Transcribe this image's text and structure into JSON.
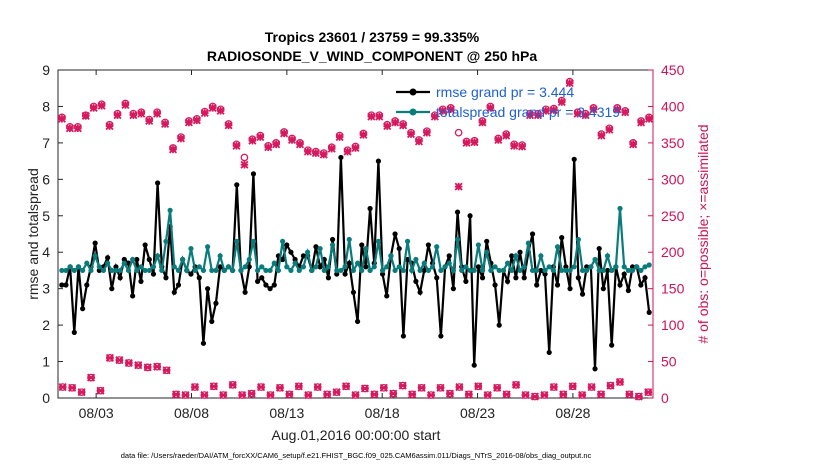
{
  "chart_data": {
    "type": "line",
    "title": "Tropics 23601 / 23759 = 99.335%",
    "subtitle": "RADIOSONDE_V_WIND_COMPONENT @ 250 hPa",
    "xlabel": "Aug.01,2016 00:00:00 start",
    "ylabel": "rmse and totalspread",
    "y2label": "# of obs: o=possible; ×=assimilated",
    "footer": "data file: /Users/raeder/DAI/ATM_forcXX/CAM6_setup/f.e21.FHIST_BGC.f09_025.CAM6assim.011/Diags_NTrS_2016-08/obs_diag_output.nc",
    "xlim": [
      1,
      32.2
    ],
    "ylim": [
      0,
      9
    ],
    "y2lim": [
      0,
      450
    ],
    "x_ticks": [
      3,
      8,
      13,
      18,
      23,
      28
    ],
    "x_tick_labels": [
      "08/03",
      "08/08",
      "08/13",
      "08/18",
      "08/23",
      "08/28"
    ],
    "y_ticks": [
      0,
      1,
      2,
      3,
      4,
      5,
      6,
      7,
      8,
      9
    ],
    "y2_ticks": [
      0,
      50,
      100,
      150,
      200,
      250,
      300,
      350,
      400,
      450
    ],
    "legend": [
      "rmse grand pr = 3.444",
      "totalspread grand pr = 3.4319"
    ],
    "legend_position": "top-right",
    "series": [
      {
        "name": "rmse grand pr = 3.444",
        "color": "#000000",
        "axis": "left",
        "values": [
          3.1,
          3.1,
          3.6,
          1.8,
          3.6,
          2.45,
          3.1,
          3.6,
          4.25,
          3.5,
          3.6,
          3.85,
          3.0,
          3.6,
          3.3,
          3.8,
          3.7,
          2.8,
          3.8,
          3.2,
          4.2,
          3.8,
          3.4,
          5.9,
          3.6,
          3.3,
          4.7,
          2.9,
          3.1,
          3.8,
          3.5,
          3.4,
          3.6,
          3.3,
          1.5,
          3.0,
          2.1,
          2.6,
          3.6,
          3.5,
          3.6,
          3.5,
          5.85,
          3.5,
          2.9,
          3.6,
          6.15,
          3.2,
          3.3,
          3.1,
          3.0,
          3.1,
          3.9,
          3.8,
          4.2,
          4.0,
          3.8,
          3.6,
          3.9,
          3.9,
          3.5,
          4.15,
          3.6,
          3.8,
          3.3,
          4.35,
          3.4,
          6.6,
          3.4,
          3.7,
          2.9,
          2.1,
          4.2,
          3.6,
          5.2,
          3.7,
          6.5,
          3.4,
          2.8,
          3.9,
          4.5,
          4.1,
          1.7,
          3.8,
          3.7,
          3.2,
          2.9,
          3.5,
          4.2,
          3.7,
          3.3,
          1.7,
          3.6,
          3.9,
          3.0,
          5.1,
          3.6,
          3.2,
          5.0,
          0.9,
          3.6,
          3.3,
          4.3,
          3.7,
          3.1,
          2.0,
          3.5,
          3.2,
          3.9,
          3.3,
          4.0,
          3.3,
          4.0,
          4.5,
          3.1,
          3.5,
          3.4,
          1.25,
          3.6,
          3.1,
          4.4,
          3.6,
          3.0,
          6.55,
          3.3,
          2.85,
          3.6,
          3.6,
          0.8,
          4.1,
          3.0,
          3.5,
          1.45,
          3.6,
          3.1,
          3.4,
          2.95,
          3.6,
          3.6,
          3.1,
          3.3,
          2.35
        ]
      },
      {
        "name": "totalspread grand pr = 3.4319",
        "color": "#0a7c7c",
        "axis": "left",
        "values": [
          3.5,
          3.5,
          3.6,
          3.5,
          3.6,
          3.5,
          3.7,
          3.5,
          3.9,
          3.6,
          3.5,
          3.7,
          3.5,
          3.5,
          3.5,
          3.7,
          3.5,
          3.8,
          3.5,
          3.6,
          3.5,
          3.5,
          3.6,
          3.9,
          3.5,
          4.3,
          5.15,
          3.6,
          3.5,
          3.8,
          3.5,
          4.1,
          3.5,
          3.6,
          3.5,
          4.15,
          3.5,
          3.5,
          3.9,
          3.5,
          3.6,
          3.5,
          4.3,
          3.5,
          3.6,
          3.8,
          4.3,
          3.5,
          3.6,
          3.5,
          3.5,
          3.7,
          3.5,
          4.3,
          3.6,
          3.5,
          3.7,
          3.5,
          3.6,
          4.0,
          3.5,
          3.6,
          4.1,
          3.5,
          3.6,
          4.2,
          3.5,
          3.5,
          3.6,
          4.35,
          3.5,
          3.7,
          3.5,
          4.1,
          3.5,
          3.6,
          4.3,
          3.5,
          3.6,
          3.9,
          3.5,
          3.6,
          3.5,
          4.3,
          3.5,
          3.8,
          3.5,
          3.7,
          3.5,
          3.6,
          4.15,
          3.5,
          3.6,
          3.7,
          3.5,
          4.35,
          3.5,
          3.6,
          3.5,
          3.5,
          4.2,
          3.5,
          4.0,
          3.5,
          3.6,
          3.5,
          3.5,
          3.7,
          3.5,
          3.9,
          3.5,
          3.6,
          4.25,
          3.5,
          3.5,
          3.9,
          3.5,
          3.6,
          3.5,
          4.15,
          3.5,
          3.5,
          3.5,
          3.6,
          4.35,
          3.5,
          3.5,
          3.6,
          3.8,
          3.5,
          3.5,
          3.9,
          3.5,
          3.6,
          5.2,
          3.6,
          3.5,
          3.5,
          3.6,
          3.5,
          3.6,
          3.65
        ]
      }
    ],
    "obs_possible": [
      385,
      372,
      372,
      388,
      400,
      403,
      375,
      390,
      404,
      390,
      392,
      382,
      392,
      378,
      343,
      358,
      380,
      383,
      393,
      400,
      396,
      376,
      348,
      330,
      355,
      360,
      346,
      350,
      365,
      356,
      350,
      340,
      338,
      336,
      344,
      360,
      340,
      345,
      363,
      388,
      388,
      375,
      380,
      376,
      364,
      354,
      366,
      388,
      396,
      398,
      364,
      352,
      353,
      380,
      400,
      356,
      362,
      348,
      347,
      390,
      390,
      396,
      397,
      408,
      434,
      392,
      390,
      398,
      362,
      370,
      398,
      394,
      350,
      380,
      385
    ],
    "obs_assimilated": [
      383,
      370,
      370,
      387,
      398,
      401,
      373,
      388,
      402,
      388,
      390,
      380,
      390,
      376,
      341,
      356,
      378,
      381,
      391,
      398,
      394,
      374,
      346,
      320,
      353,
      358,
      344,
      348,
      363,
      354,
      348,
      338,
      336,
      334,
      342,
      358,
      338,
      343,
      361,
      386,
      386,
      373,
      378,
      374,
      362,
      352,
      364,
      386,
      394,
      396,
      290,
      350,
      351,
      378,
      398,
      354,
      360,
      346,
      345,
      388,
      388,
      394,
      395,
      406,
      432,
      390,
      388,
      396,
      360,
      368,
      396,
      392,
      348,
      378,
      383
    ],
    "obs_low": [
      15,
      14,
      8,
      28,
      10,
      55,
      52,
      48,
      45,
      42,
      43,
      38,
      5,
      4,
      15,
      4,
      16,
      4,
      18,
      4,
      6,
      15,
      4,
      14,
      5,
      16,
      4,
      15,
      5,
      8,
      16,
      4,
      13,
      5,
      14,
      6,
      17,
      5,
      14,
      4,
      14,
      6,
      15,
      5,
      16,
      4,
      14,
      5,
      18,
      4,
      2,
      4,
      15,
      5,
      16,
      4,
      15,
      5,
      17,
      22,
      5,
      2,
      8
    ]
  }
}
